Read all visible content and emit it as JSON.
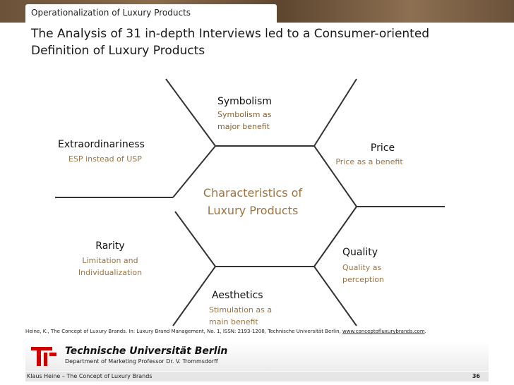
{
  "header": {
    "section": "Operationalization of Luxury Products",
    "title_lines": [
      "The Analysis of 31 in-depth Interviews led to a Consumer-oriented",
      "Definition of Luxury Products"
    ]
  },
  "diagram": {
    "center": [
      "Characteristics of",
      "Luxury Products"
    ],
    "nodes": [
      {
        "label": "Symbolism",
        "detail": [
          "Symbolism as",
          "major benefit"
        ]
      },
      {
        "label": "Extraordinariness",
        "detail": [
          "ESP instead of USP"
        ]
      },
      {
        "label": "Price",
        "detail": [
          "Price as a benefit"
        ]
      },
      {
        "label": "Rarity",
        "detail": [
          "Limitation and",
          "Individualization"
        ]
      },
      {
        "label": "Quality",
        "detail": [
          "Quality as",
          "perception"
        ]
      },
      {
        "label": "Aesthetics",
        "detail": [
          "Stimulation as a",
          "main benefit"
        ]
      }
    ]
  },
  "footer": {
    "citation": "Heine, K., The Concept of Luxury Brands. In: Luxury Brand Management, No. 1, ISSN: 2193-1208, Technische Universität Berlin, ",
    "citation_link": "www.conceptofluxurybrands.com",
    "citation_end": ".",
    "university": "Technische Universität Berlin",
    "department": "Department of Marketing Professor Dr. V. Trommsdorff",
    "author": "Klaus Heine – The Concept of Luxury Brands",
    "page": "36"
  }
}
